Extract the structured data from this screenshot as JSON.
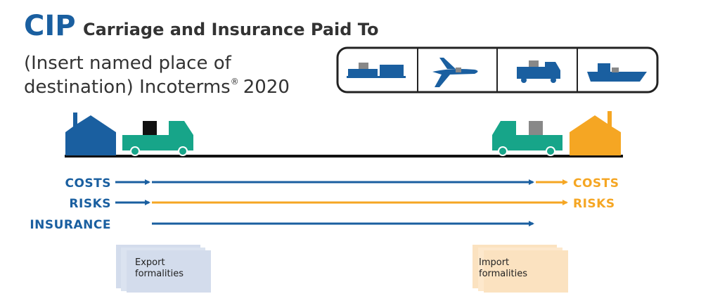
{
  "header": {
    "code": "CIP",
    "title": "Carriage and Insurance Paid To",
    "subtitle_lines": [
      "(Insert named place of",
      "destination) Incoterms"
    ],
    "trademark": "®",
    "year": "2020"
  },
  "labels": {
    "seller": [
      "COSTS",
      "RISKS",
      "INSURANCE"
    ],
    "buyer": [
      "COSTS",
      "RISKS"
    ]
  },
  "documents": {
    "export": [
      "Export",
      "formalities"
    ],
    "import": [
      "Import",
      "formalities"
    ]
  }
}
